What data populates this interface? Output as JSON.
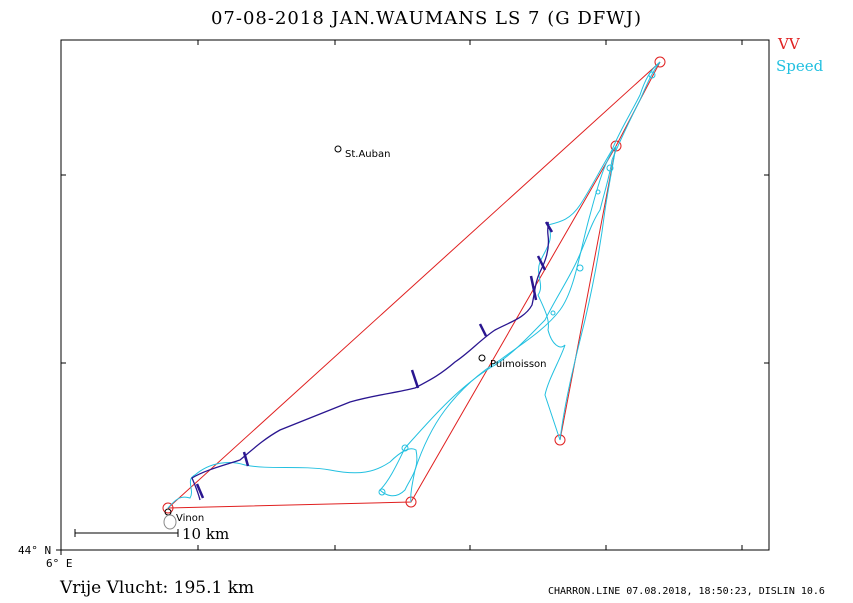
{
  "title": "07-08-2018    JAN.WAUMANS    LS 7 (G DFWJ)",
  "legend": {
    "vv": "VV",
    "speed": "Speed"
  },
  "colors": {
    "frame": "#000000",
    "task": "#e02020",
    "speed_track": "#22c0e0",
    "climb_track": "#2a1690"
  },
  "places": [
    {
      "id": "st-auban",
      "name": "St.Auban"
    },
    {
      "id": "puimoisson",
      "name": "Puimoisson"
    },
    {
      "id": "vinon",
      "name": "Vinon"
    }
  ],
  "scale_label": "10 km",
  "axis": {
    "lat_label": "44° N",
    "lon_label": "6° E"
  },
  "footer": {
    "left": "Vrije Vlucht:  195.1 km",
    "right": "CHARRON.LINE 07.08.2018, 18:50:23, DISLIN 10.6"
  }
}
